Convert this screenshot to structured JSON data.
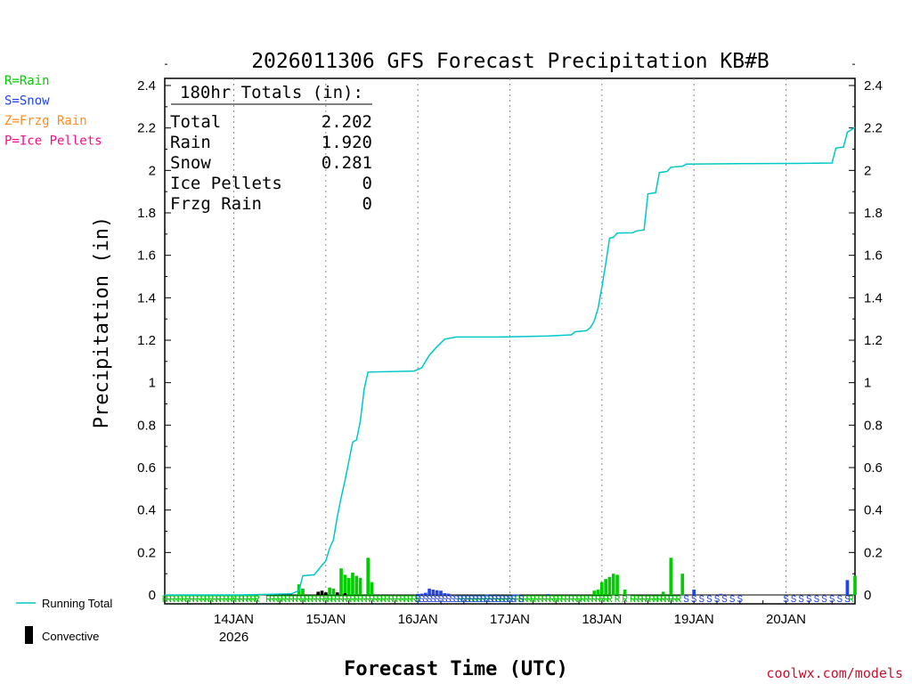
{
  "chart_data": {
    "type": "bar",
    "title": "2026011306 GFS Forecast Precipitation KB#B",
    "ylabel": "Precipitation (in)",
    "xlabel": "Forecast Time (UTC)",
    "ylim": [
      0,
      2.4
    ],
    "yticks": [
      "0",
      "0.2",
      "0.4",
      "0.6",
      "0.8",
      "1",
      "1.2",
      "1.4",
      "1.6",
      "1.8",
      "2",
      "2.2",
      "2.4"
    ],
    "xlim": [
      0,
      180
    ],
    "xticks": [
      {
        "label": "14JAN",
        "sub": "2026",
        "hour": 18
      },
      {
        "label": "15JAN",
        "sub": "",
        "hour": 42
      },
      {
        "label": "16JAN",
        "sub": "",
        "hour": 66
      },
      {
        "label": "17JAN",
        "sub": "",
        "hour": 90
      },
      {
        "label": "18JAN",
        "sub": "",
        "hour": 114
      },
      {
        "label": "19JAN",
        "sub": "",
        "hour": 138
      },
      {
        "label": "20JAN",
        "sub": "",
        "hour": 162
      }
    ],
    "ptype_legend": [
      {
        "text": "R=Rain",
        "color": "#00cc00"
      },
      {
        "text": "S=Snow",
        "color": "#2244ee"
      },
      {
        "text": "Z=Frzg Rain",
        "color": "#ff8c1a"
      },
      {
        "text": "P=Ice Pellets",
        "color": "#ee1188"
      }
    ],
    "totals_box": {
      "header": "180hr Totals (in):",
      "rows": [
        {
          "label": "Total",
          "value": "2.202"
        },
        {
          "label": "Rain",
          "value": "1.920"
        },
        {
          "label": "Snow",
          "value": "0.281"
        },
        {
          "label": "Ice Pellets",
          "value": "0"
        },
        {
          "label": "Frzg Rain",
          "value": "0"
        }
      ]
    },
    "running_total_label": "Running Total",
    "convective_label": "Convective",
    "credit": "coolwx.com/models",
    "colors": {
      "rain": "#00cc00",
      "snow": "#2244ee",
      "running_total": "#00c8c8",
      "convective": "#000000",
      "grid": "#888888"
    },
    "running_total": [
      {
        "h": 0,
        "v": 0
      },
      {
        "h": 20,
        "v": 0.0
      },
      {
        "h": 33,
        "v": 0.005
      },
      {
        "h": 35,
        "v": 0.02
      },
      {
        "h": 36,
        "v": 0.09
      },
      {
        "h": 39,
        "v": 0.095
      },
      {
        "h": 41,
        "v": 0.14
      },
      {
        "h": 42,
        "v": 0.16
      },
      {
        "h": 43,
        "v": 0.22
      },
      {
        "h": 44,
        "v": 0.26
      },
      {
        "h": 45,
        "v": 0.37
      },
      {
        "h": 46,
        "v": 0.46
      },
      {
        "h": 47,
        "v": 0.54
      },
      {
        "h": 48,
        "v": 0.63
      },
      {
        "h": 49,
        "v": 0.72
      },
      {
        "h": 50,
        "v": 0.73
      },
      {
        "h": 51,
        "v": 0.82
      },
      {
        "h": 52,
        "v": 0.97
      },
      {
        "h": 53,
        "v": 1.05
      },
      {
        "h": 65,
        "v": 1.055
      },
      {
        "h": 67,
        "v": 1.07
      },
      {
        "h": 69,
        "v": 1.13
      },
      {
        "h": 71,
        "v": 1.17
      },
      {
        "h": 73,
        "v": 1.205
      },
      {
        "h": 76,
        "v": 1.215
      },
      {
        "h": 88,
        "v": 1.215
      },
      {
        "h": 100,
        "v": 1.22
      },
      {
        "h": 106,
        "v": 1.225
      },
      {
        "h": 107,
        "v": 1.24
      },
      {
        "h": 110,
        "v": 1.245
      },
      {
        "h": 111,
        "v": 1.26
      },
      {
        "h": 112,
        "v": 1.29
      },
      {
        "h": 113,
        "v": 1.35
      },
      {
        "h": 114,
        "v": 1.45
      },
      {
        "h": 115,
        "v": 1.56
      },
      {
        "h": 116,
        "v": 1.68
      },
      {
        "h": 117,
        "v": 1.685
      },
      {
        "h": 118,
        "v": 1.705
      },
      {
        "h": 122,
        "v": 1.706
      },
      {
        "h": 123,
        "v": 1.715
      },
      {
        "h": 125,
        "v": 1.72
      },
      {
        "h": 126,
        "v": 1.89
      },
      {
        "h": 128,
        "v": 1.895
      },
      {
        "h": 129,
        "v": 1.99
      },
      {
        "h": 131,
        "v": 1.995
      },
      {
        "h": 132,
        "v": 2.015
      },
      {
        "h": 135,
        "v": 2.02
      },
      {
        "h": 136,
        "v": 2.03
      },
      {
        "h": 150,
        "v": 2.032
      },
      {
        "h": 165,
        "v": 2.033
      },
      {
        "h": 174,
        "v": 2.035
      },
      {
        "h": 175,
        "v": 2.105
      },
      {
        "h": 177,
        "v": 2.11
      },
      {
        "h": 178,
        "v": 2.18
      },
      {
        "h": 180,
        "v": 2.202
      }
    ],
    "series": [
      {
        "name": "Rain",
        "color": "#00cc00",
        "points": [
          {
            "h": 35,
            "v": 0.05
          },
          {
            "h": 36,
            "v": 0.03
          },
          {
            "h": 43,
            "v": 0.035
          },
          {
            "h": 44,
            "v": 0.03
          },
          {
            "h": 46,
            "v": 0.125
          },
          {
            "h": 47,
            "v": 0.095
          },
          {
            "h": 48,
            "v": 0.08
          },
          {
            "h": 49,
            "v": 0.105
          },
          {
            "h": 50,
            "v": 0.09
          },
          {
            "h": 51,
            "v": 0.08
          },
          {
            "h": 53,
            "v": 0.175
          },
          {
            "h": 54,
            "v": 0.06
          },
          {
            "h": 112,
            "v": 0.02
          },
          {
            "h": 113,
            "v": 0.025
          },
          {
            "h": 114,
            "v": 0.06
          },
          {
            "h": 115,
            "v": 0.075
          },
          {
            "h": 116,
            "v": 0.085
          },
          {
            "h": 117,
            "v": 0.1
          },
          {
            "h": 118,
            "v": 0.095
          },
          {
            "h": 120,
            "v": 0.025
          },
          {
            "h": 130,
            "v": 0.015
          },
          {
            "h": 132,
            "v": 0.175
          },
          {
            "h": 135,
            "v": 0.1
          },
          {
            "h": 180,
            "v": 0.09
          }
        ]
      },
      {
        "name": "Snow",
        "color": "#2244ee",
        "points": [
          {
            "h": 66,
            "v": 0.005
          },
          {
            "h": 67,
            "v": 0.006
          },
          {
            "h": 68,
            "v": 0.01
          },
          {
            "h": 69,
            "v": 0.03
          },
          {
            "h": 70,
            "v": 0.025
          },
          {
            "h": 71,
            "v": 0.022
          },
          {
            "h": 72,
            "v": 0.02
          },
          {
            "h": 73,
            "v": 0.008
          },
          {
            "h": 74,
            "v": 0.006
          },
          {
            "h": 84,
            "v": 0.002
          },
          {
            "h": 91,
            "v": 0.002
          },
          {
            "h": 92,
            "v": 0.002
          },
          {
            "h": 100,
            "v": 0.004
          },
          {
            "h": 138,
            "v": 0.025
          },
          {
            "h": 145,
            "v": 0.005
          },
          {
            "h": 178,
            "v": 0.07
          }
        ]
      },
      {
        "name": "Convective",
        "color": "#000000",
        "points": [
          {
            "h": 40,
            "v": 0.015
          },
          {
            "h": 41,
            "v": 0.02
          },
          {
            "h": 42,
            "v": 0.012
          },
          {
            "h": 45,
            "v": 0.012
          },
          {
            "h": 47,
            "v": 0.008
          }
        ]
      }
    ],
    "ptype_strip": {
      "rain_segments": [
        [
          0,
          12
        ],
        [
          13,
          24
        ],
        [
          27,
          66
        ],
        [
          77,
          116
        ],
        [
          122,
          134
        ]
      ],
      "rain_letters": [
        14,
        16,
        18,
        20,
        22,
        24,
        118,
        120,
        124,
        126,
        128,
        130,
        132,
        134,
        179
      ],
      "snow_segments": [
        [
          66,
          90
        ]
      ],
      "snow_letters": [
        91,
        93,
        136,
        138,
        140,
        142,
        144,
        146,
        148,
        150,
        162,
        164,
        166,
        168,
        170,
        172,
        174,
        176,
        178
      ]
    }
  }
}
